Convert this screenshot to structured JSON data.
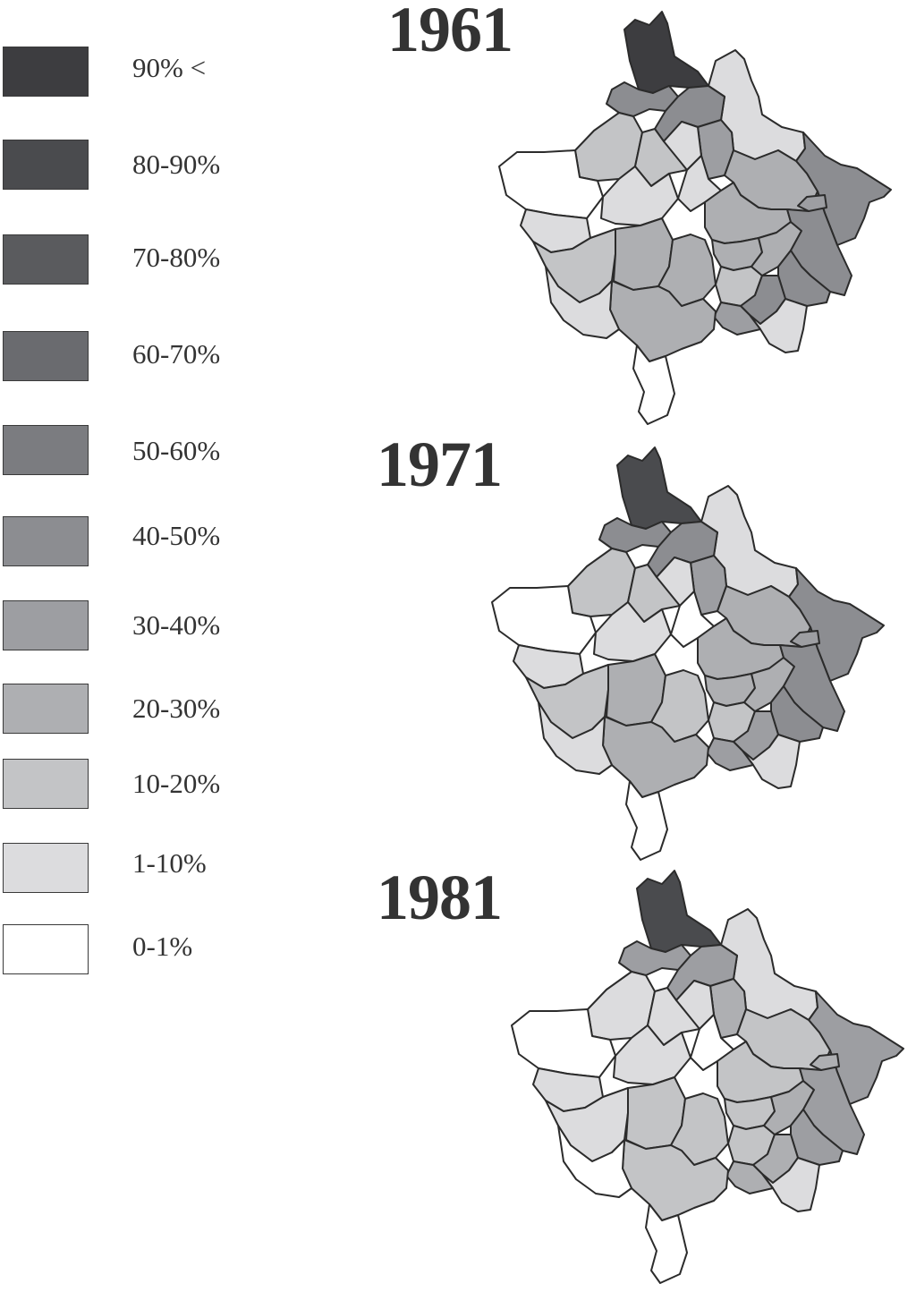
{
  "legend": {
    "items": [
      {
        "label": "90% <",
        "color": "#3d3d40"
      },
      {
        "label": "80-90%",
        "color": "#4a4b4e"
      },
      {
        "label": "70-80%",
        "color": "#5a5b5e"
      },
      {
        "label": "60-70%",
        "color": "#6a6b6f"
      },
      {
        "label": "50-60%",
        "color": "#7b7c80"
      },
      {
        "label": "40-50%",
        "color": "#8c8d91"
      },
      {
        "label": "30-40%",
        "color": "#9d9ea2"
      },
      {
        "label": "20-30%",
        "color": "#aeafb2"
      },
      {
        "label": "10-20%",
        "color": "#c3c4c6"
      },
      {
        "label": "1-10%",
        "color": "#dcdcde"
      },
      {
        "label": "0-1%",
        "color": "#ffffff"
      }
    ]
  },
  "maps": [
    {
      "year": "1961",
      "classes": [
        0,
        9,
        5,
        5,
        6,
        5,
        7,
        8,
        8,
        9,
        9,
        10,
        9,
        9,
        8,
        7,
        7,
        7,
        7,
        8,
        7,
        5,
        5,
        6,
        5,
        9,
        6,
        7,
        9,
        10
      ]
    },
    {
      "year": "1971",
      "classes": [
        1,
        9,
        5,
        5,
        6,
        5,
        7,
        8,
        8,
        9,
        10,
        10,
        9,
        9,
        8,
        7,
        8,
        7,
        7,
        8,
        7,
        5,
        5,
        6,
        6,
        9,
        6,
        7,
        9,
        10
      ]
    },
    {
      "year": "1981",
      "classes": [
        1,
        9,
        6,
        6,
        7,
        6,
        8,
        9,
        9,
        9,
        10,
        10,
        9,
        9,
        9,
        8,
        8,
        8,
        8,
        8,
        7,
        6,
        6,
        7,
        7,
        9,
        7,
        8,
        10,
        10
      ]
    }
  ]
}
